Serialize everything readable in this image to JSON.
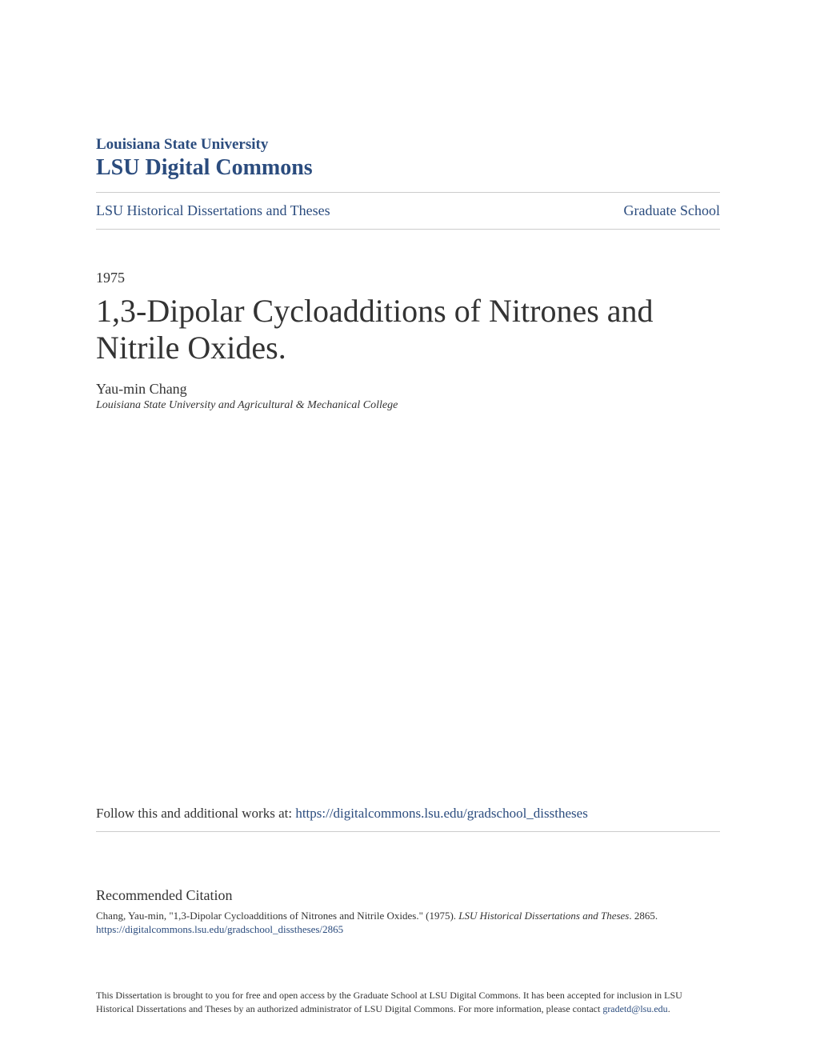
{
  "header": {
    "university": "Louisiana State University",
    "commons": "LSU Digital Commons"
  },
  "nav": {
    "left": "LSU Historical Dissertations and Theses",
    "right": "Graduate School"
  },
  "paper": {
    "year": "1975",
    "title": "1,3-Dipolar Cycloadditions of Nitrones and Nitrile Oxides.",
    "author": "Yau-min Chang",
    "affiliation": "Louisiana State University and Agricultural & Mechanical College"
  },
  "follow": {
    "prefix": "Follow this and additional works at: ",
    "url": "https://digitalcommons.lsu.edu/gradschool_disstheses"
  },
  "citation": {
    "heading": "Recommended Citation",
    "text_prefix": "Chang, Yau-min, \"1,3-Dipolar Cycloadditions of Nitrones and Nitrile Oxides.\" (1975). ",
    "text_italic": "LSU Historical Dissertations and Theses",
    "text_suffix": ". 2865.",
    "url": "https://digitalcommons.lsu.edu/gradschool_disstheses/2865"
  },
  "footer": {
    "text": "This Dissertation is brought to you for free and open access by the Graduate School at LSU Digital Commons. It has been accepted for inclusion in LSU Historical Dissertations and Theses by an authorized administrator of LSU Digital Commons. For more information, please contact ",
    "email": "gradetd@lsu.edu",
    "period": "."
  },
  "colors": {
    "link_color": "#2b4c7e",
    "text_color": "#333333",
    "border_color": "#cccccc",
    "background": "#ffffff"
  }
}
